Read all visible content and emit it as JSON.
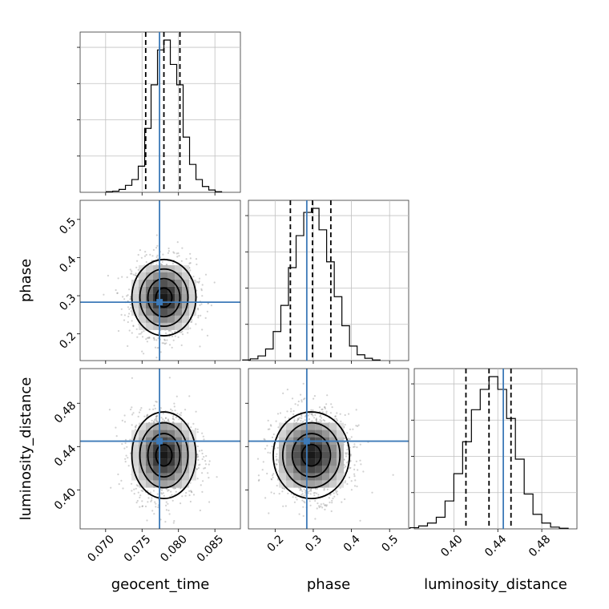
{
  "chart_data": {
    "type": "corner",
    "parameters": [
      {
        "name": "geocent_time",
        "label": "geocent_time",
        "range": [
          0.0665,
          0.0885
        ],
        "ticks": [
          "0.070",
          "0.075",
          "0.080",
          "0.085"
        ],
        "tick_values": [
          0.07,
          0.075,
          0.08,
          0.085
        ]
      },
      {
        "name": "phase",
        "label": "phase",
        "range": [
          0.13,
          0.55
        ],
        "ticks": [
          "0.2",
          "0.3",
          "0.4",
          "0.5"
        ],
        "tick_values": [
          0.2,
          0.3,
          0.4,
          0.5
        ]
      },
      {
        "name": "luminosity_distance",
        "label": "luminosity_distance",
        "range": [
          0.364,
          0.512
        ],
        "ticks": [
          "0.40",
          "0.44",
          "0.48"
        ],
        "tick_values": [
          0.4,
          0.44,
          0.48
        ]
      }
    ],
    "truth": [
      0.0774,
      0.283,
      0.445
    ],
    "quantiles": [
      [
        0.0755,
        0.078,
        0.0802
      ],
      [
        0.24,
        0.298,
        0.346
      ],
      [
        0.411,
        0.432,
        0.452
      ]
    ],
    "posterior_mean": [
      0.078,
      0.295,
      0.432
    ],
    "posterior_std": [
      0.0022,
      0.05,
      0.02
    ],
    "histograms": [
      {
        "counts": [
          1,
          2,
          5,
          12,
          22,
          45,
          110,
          185,
          245,
          262,
          220,
          185,
          95,
          48,
          22,
          10,
          4,
          1
        ]
      },
      {
        "counts": [
          1,
          3,
          8,
          20,
          50,
          95,
          160,
          215,
          255,
          262,
          225,
          170,
          110,
          60,
          25,
          10,
          4,
          1
        ]
      },
      {
        "counts": [
          2,
          5,
          10,
          20,
          48,
          95,
          150,
          205,
          240,
          262,
          240,
          190,
          120,
          60,
          25,
          10,
          3,
          1
        ]
      }
    ],
    "grid": true,
    "contour_levels": [
      "0.118",
      "0.393",
      "0.675",
      "0.864"
    ]
  }
}
